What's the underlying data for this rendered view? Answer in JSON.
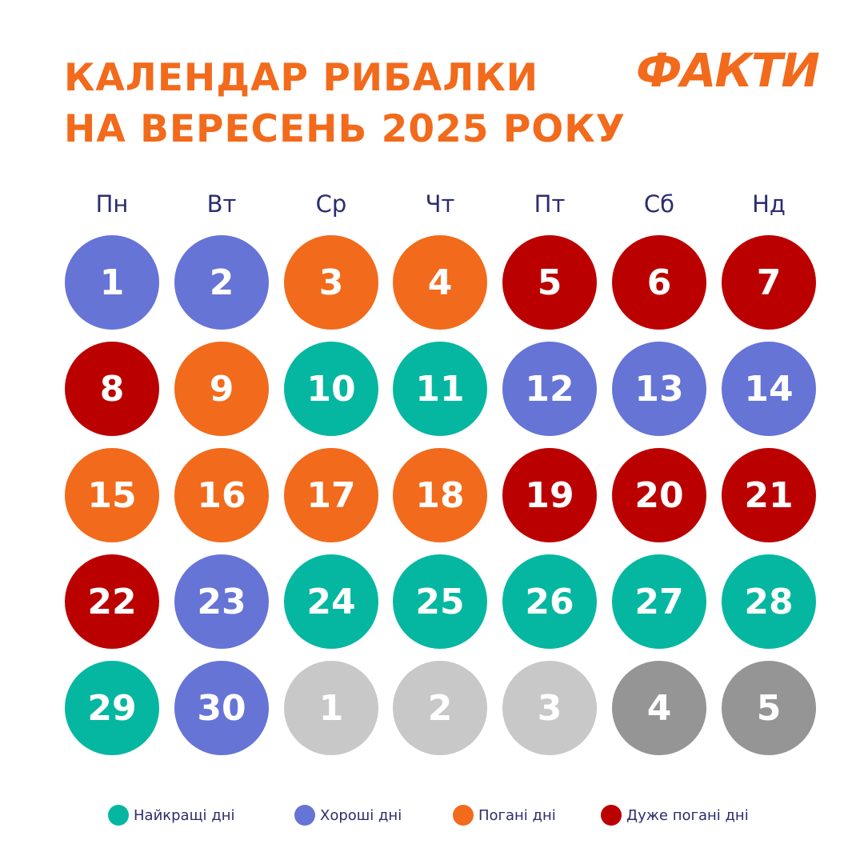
{
  "header": {
    "title_line1": "КАЛЕНДАР РИБАЛКИ",
    "title_line2": "НА ВЕРЕСЕНЬ 2025 РОКУ",
    "logo": "ФАКТИ"
  },
  "colors": {
    "accent": "#f26a1b",
    "best": "#05b7a0",
    "good": "#6674d6",
    "bad": "#f26a1b",
    "very_bad": "#bb0000",
    "next_light": "#c8c8c8",
    "next_dark": "#959595",
    "text": "#2b2d6e"
  },
  "weekdays": [
    "Пн",
    "Вт",
    "Ср",
    "Чт",
    "Пт",
    "Сб",
    "Нд"
  ],
  "days": [
    {
      "n": "1",
      "type": "good"
    },
    {
      "n": "2",
      "type": "good"
    },
    {
      "n": "3",
      "type": "bad"
    },
    {
      "n": "4",
      "type": "bad"
    },
    {
      "n": "5",
      "type": "very_bad"
    },
    {
      "n": "6",
      "type": "very_bad"
    },
    {
      "n": "7",
      "type": "very_bad"
    },
    {
      "n": "8",
      "type": "very_bad"
    },
    {
      "n": "9",
      "type": "bad"
    },
    {
      "n": "10",
      "type": "best"
    },
    {
      "n": "11",
      "type": "best"
    },
    {
      "n": "12",
      "type": "good"
    },
    {
      "n": "13",
      "type": "good"
    },
    {
      "n": "14",
      "type": "good"
    },
    {
      "n": "15",
      "type": "bad"
    },
    {
      "n": "16",
      "type": "bad"
    },
    {
      "n": "17",
      "type": "bad"
    },
    {
      "n": "18",
      "type": "bad"
    },
    {
      "n": "19",
      "type": "very_bad"
    },
    {
      "n": "20",
      "type": "very_bad"
    },
    {
      "n": "21",
      "type": "very_bad"
    },
    {
      "n": "22",
      "type": "very_bad"
    },
    {
      "n": "23",
      "type": "good"
    },
    {
      "n": "24",
      "type": "best"
    },
    {
      "n": "25",
      "type": "best"
    },
    {
      "n": "26",
      "type": "best"
    },
    {
      "n": "27",
      "type": "best"
    },
    {
      "n": "28",
      "type": "best"
    },
    {
      "n": "29",
      "type": "best"
    },
    {
      "n": "30",
      "type": "good"
    },
    {
      "n": "1",
      "type": "next_light"
    },
    {
      "n": "2",
      "type": "next_light"
    },
    {
      "n": "3",
      "type": "next_light"
    },
    {
      "n": "4",
      "type": "next_dark"
    },
    {
      "n": "5",
      "type": "next_dark"
    }
  ],
  "legend": [
    {
      "label": "Найкращі дні",
      "type": "best"
    },
    {
      "label": "Хороші дні",
      "type": "good"
    },
    {
      "label": "Погані дні",
      "type": "bad"
    },
    {
      "label": "Дуже погані дні",
      "type": "very_bad"
    }
  ]
}
